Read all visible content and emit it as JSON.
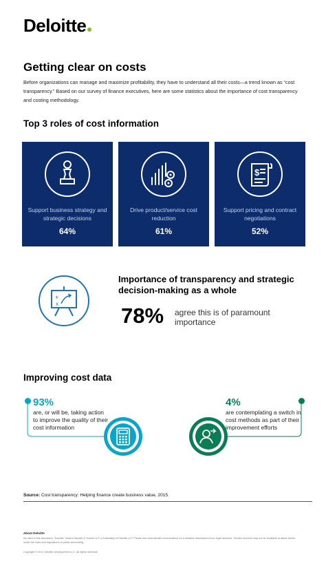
{
  "brand": {
    "name": "Deloitte",
    "accent": "#86BC25"
  },
  "title": "Getting clear on costs",
  "intro": "Before organizations can manage and maximize profitability, they have to understand all their costs—a trend known as “cost transparency.” Based on our survey of finance executives, here are some statistics about the importance of cost transparency and costing methodology.",
  "roles": {
    "heading": "Top 3 roles of cost information",
    "cards": [
      {
        "icon": "chess-pawn-icon",
        "label": "Support business strategy and strategic decisions",
        "pct": "64%"
      },
      {
        "icon": "chart-gears-icon",
        "label": "Drive product/service cost reduction",
        "pct": "61%"
      },
      {
        "icon": "invoice-scroll-icon",
        "label": "Support pricing and contract negotiations",
        "pct": "52%"
      }
    ]
  },
  "transparency": {
    "icon": "strategy-board-icon",
    "heading": "Importance of transparency and strategic decision-making as a whole",
    "pct": "78%",
    "text": "agree this is of paramount importance"
  },
  "improving": {
    "heading": "Improving cost data",
    "left": {
      "pct": "93%",
      "text": "are, or will be, taking action to improve the quality of their cost information",
      "icon": "calculator-icon",
      "color": "#0AA5C9"
    },
    "right": {
      "pct": "4%",
      "text": "are contemplating a switch in cost methods as part of their improvement efforts",
      "icon": "switch-person-icon",
      "color": "#0A7D55"
    }
  },
  "source": {
    "label": "Source:",
    "text": "Cost transparency: Helping finance create business value, 2015."
  },
  "footer": {
    "about_heading": "About Deloitte",
    "about_text": "As used in this document, “Deloitte” means Deloitte & Touche LLP, a subsidiary of Deloitte LLP. Please see www.deloitte.com/us/about for a detailed description of our legal structure. Certain services may not be available to attest clients under the rules and regulations of public accounting.",
    "copyright": "Copyright © 2017 Deloitte Development LLC. All rights reserved."
  },
  "colors": {
    "navy": "#0D2C6C",
    "blue": "#0AA5C9",
    "green": "#0A7D55",
    "board_blue": "#1E73B5"
  }
}
